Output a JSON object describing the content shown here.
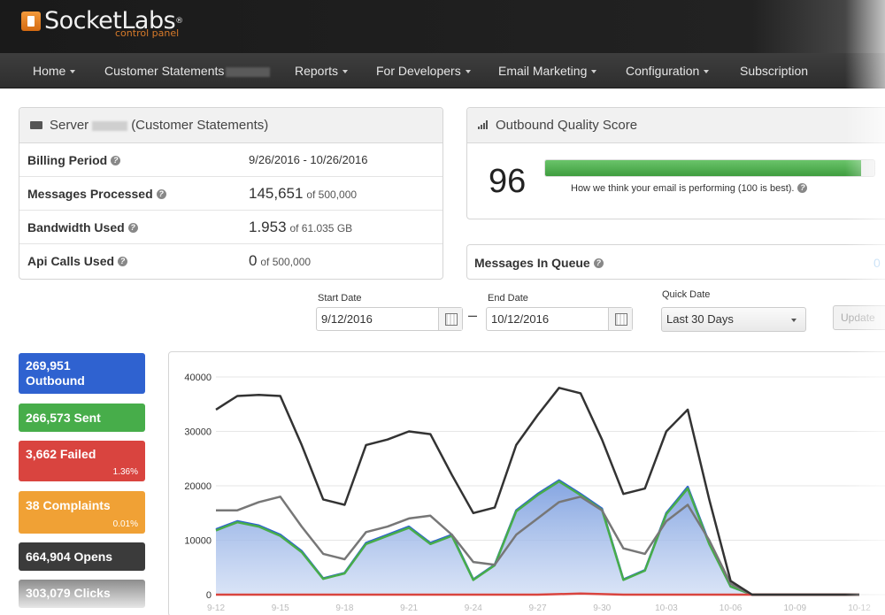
{
  "header": {
    "logo_text": "SocketLabs",
    "logo_sub": "control panel"
  },
  "nav": {
    "items": [
      {
        "label": "Home",
        "caret": true
      },
      {
        "label": "Customer Statements",
        "caret": false
      },
      {
        "label": "Reports",
        "caret": true
      },
      {
        "label": "For Developers",
        "caret": true
      },
      {
        "label": "Email Marketing",
        "caret": true
      },
      {
        "label": "Configuration",
        "caret": true
      },
      {
        "label": "Subscription",
        "caret": false
      }
    ]
  },
  "server_panel": {
    "title_prefix": "Server",
    "title_suffix": "(Customer Statements)",
    "rows": [
      {
        "label": "Billing Period",
        "value": "9/26/2016 - 10/26/2016",
        "big": "",
        "small": ""
      },
      {
        "label": "Messages Processed",
        "value": "",
        "big": "145,651",
        "small": "of 500,000"
      },
      {
        "label": "Bandwidth Used",
        "value": "",
        "big": "1.953",
        "small": "of 61.035 GB"
      },
      {
        "label": "Api Calls Used",
        "value": "",
        "big": "0",
        "small": "of 500,000"
      }
    ]
  },
  "quality_panel": {
    "title": "Outbound Quality Score",
    "score": "96",
    "score_fraction": 0.96,
    "caption": "How we think your email is performing (100 is best)."
  },
  "queue": {
    "label": "Messages In Queue",
    "value": "0"
  },
  "filters": {
    "start_label": "Start Date",
    "start_value": "9/12/2016",
    "end_label": "End Date",
    "end_value": "10/12/2016",
    "quick_label": "Quick Date",
    "quick_value": "Last 30 Days",
    "update_label": "Update"
  },
  "stats": [
    {
      "line1": "269,951",
      "line2": "Outbound",
      "pct": "",
      "color": "#2f62d0"
    },
    {
      "line1": "266,573 Sent",
      "line2": "",
      "pct": "",
      "color": "#47ad4a"
    },
    {
      "line1": "3,662 Failed",
      "line2": "",
      "pct": "1.36%",
      "color": "#d9443f"
    },
    {
      "line1": "38 Complaints",
      "line2": "",
      "pct": "0.01%",
      "color": "#f0a135"
    },
    {
      "line1": "664,904 Opens",
      "line2": "",
      "pct": "",
      "color": "#3b3b3b"
    },
    {
      "line1": "303,079 Clicks",
      "line2": "",
      "pct": "",
      "color": "#9e9e9e"
    }
  ],
  "chart_data": {
    "type": "line",
    "ylim": [
      0,
      40000
    ],
    "y_ticks": [
      "0",
      "10000",
      "20000",
      "30000",
      "40000"
    ],
    "x_tick_labels": [
      "9-12",
      "9-15",
      "9-18",
      "9-21",
      "9-24",
      "9-27",
      "9-30",
      "10-03",
      "10-06",
      "10-09",
      "10-12"
    ],
    "x_count": 31,
    "series": [
      {
        "key": "opens",
        "color": "#333333",
        "values": [
          34000,
          36500,
          36700,
          36500,
          27500,
          17500,
          16500,
          27500,
          28500,
          30000,
          29500,
          22000,
          15000,
          16000,
          27500,
          33000,
          38000,
          37000,
          28500,
          18500,
          19500,
          30000,
          34000,
          17500,
          2500,
          0,
          0,
          0,
          0,
          0,
          0
        ]
      },
      {
        "key": "clicks",
        "color": "#777777",
        "values": [
          15500,
          15500,
          17000,
          18000,
          12500,
          7500,
          6500,
          11500,
          12500,
          14000,
          14500,
          11000,
          6000,
          5500,
          11000,
          14000,
          17000,
          18000,
          15500,
          8500,
          7500,
          13500,
          16500,
          10000,
          2000,
          0,
          0,
          0,
          0,
          0,
          0
        ]
      },
      {
        "key": "outbound",
        "color": "#2f62d0",
        "fill": true,
        "values": [
          12000,
          13500,
          12700,
          11000,
          8000,
          3000,
          4000,
          9500,
          11000,
          12500,
          9500,
          11000,
          2800,
          5500,
          15500,
          18500,
          21000,
          18500,
          15800,
          2800,
          4500,
          15000,
          19800,
          9500,
          1500,
          0,
          0,
          0,
          0,
          0,
          0
        ]
      },
      {
        "key": "sent",
        "color": "#47ad4a",
        "values": [
          11800,
          13300,
          12500,
          10800,
          7800,
          2900,
          3900,
          9300,
          10800,
          12300,
          9300,
          10800,
          2700,
          5400,
          15300,
          18300,
          20800,
          18300,
          15600,
          2700,
          4400,
          14800,
          19500,
          9300,
          1500,
          0,
          0,
          0,
          0,
          0,
          0
        ]
      },
      {
        "key": "failed",
        "color": "#d9443f",
        "values": [
          0,
          0,
          0,
          0,
          0,
          0,
          0,
          0,
          0,
          0,
          0,
          0,
          0,
          0,
          0,
          0,
          100,
          200,
          100,
          0,
          0,
          0,
          0,
          0,
          0,
          0,
          0,
          0,
          0,
          0,
          0
        ]
      }
    ]
  }
}
